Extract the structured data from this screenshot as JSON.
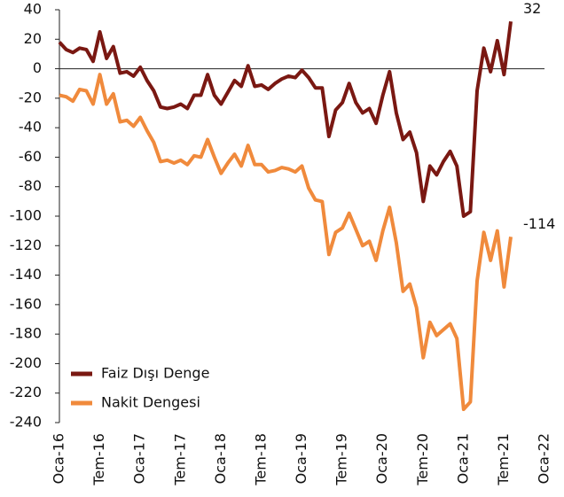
{
  "chart_data": {
    "type": "line",
    "categories": [
      "Oca-16",
      null,
      null,
      null,
      null,
      null,
      "Tem-16",
      null,
      null,
      null,
      null,
      null,
      "Oca-17",
      null,
      null,
      null,
      null,
      null,
      "Tem-17",
      null,
      null,
      null,
      null,
      null,
      "Oca-18",
      null,
      null,
      null,
      null,
      null,
      "Tem-18",
      null,
      null,
      null,
      null,
      null,
      "Oca-19",
      null,
      null,
      null,
      null,
      null,
      "Tem-19",
      null,
      null,
      null,
      null,
      null,
      "Oca-20",
      null,
      null,
      null,
      null,
      null,
      "Tem-20",
      null,
      null,
      null,
      null,
      null,
      "Oca-21",
      null,
      null,
      null,
      null,
      null,
      "Tem-21",
      null,
      null,
      null,
      null,
      null,
      "Oca-22"
    ],
    "series": [
      {
        "name": "Faiz Dışı Denge",
        "color": "#7a1812",
        "values": [
          18,
          13,
          11,
          14,
          13,
          5,
          25,
          7,
          15,
          -3,
          -2,
          -5,
          1,
          -8,
          -15,
          -26,
          -27,
          -26,
          -24,
          -27,
          -18,
          -18,
          -4,
          -18,
          -24,
          -16,
          -8,
          -12,
          2,
          -12,
          -11,
          -14,
          -10,
          -7,
          -5,
          -6,
          -1,
          -6,
          -13,
          -13,
          -46,
          -28,
          -23,
          -10,
          -23,
          -30,
          -27,
          -37,
          -18,
          -2,
          -30,
          -48,
          -43,
          -57,
          -90,
          -66,
          -72,
          -63,
          -56,
          -66,
          -100,
          -97,
          -15,
          14,
          -2,
          19,
          -4,
          32,
          null,
          null,
          null,
          null,
          null
        ]
      },
      {
        "name": "Nakit Dengesi",
        "color": "#f08a3c",
        "values": [
          -18,
          -19,
          -22,
          -14,
          -15,
          -24,
          -4,
          -24,
          -17,
          -36,
          -35,
          -39,
          -33,
          -42,
          -50,
          -63,
          -62,
          -64,
          -62,
          -65,
          -59,
          -60,
          -48,
          -60,
          -71,
          -64,
          -58,
          -66,
          -52,
          -65,
          -65,
          -70,
          -69,
          -67,
          -68,
          -70,
          -66,
          -81,
          -89,
          -90,
          -126,
          -111,
          -108,
          -98,
          -109,
          -120,
          -117,
          -130,
          -110,
          -94,
          -118,
          -151,
          -146,
          -162,
          -196,
          -172,
          -181,
          -177,
          -173,
          -183,
          -231,
          -226,
          -144,
          -111,
          -130,
          -110,
          -148,
          -114,
          null,
          null,
          null,
          null,
          null
        ]
      }
    ],
    "ylim": [
      -240,
      40
    ],
    "yticks": [
      -240,
      -220,
      -200,
      -180,
      -160,
      -140,
      -120,
      -100,
      -80,
      -60,
      -40,
      -20,
      0,
      20,
      40
    ],
    "legend": "lower left"
  }
}
